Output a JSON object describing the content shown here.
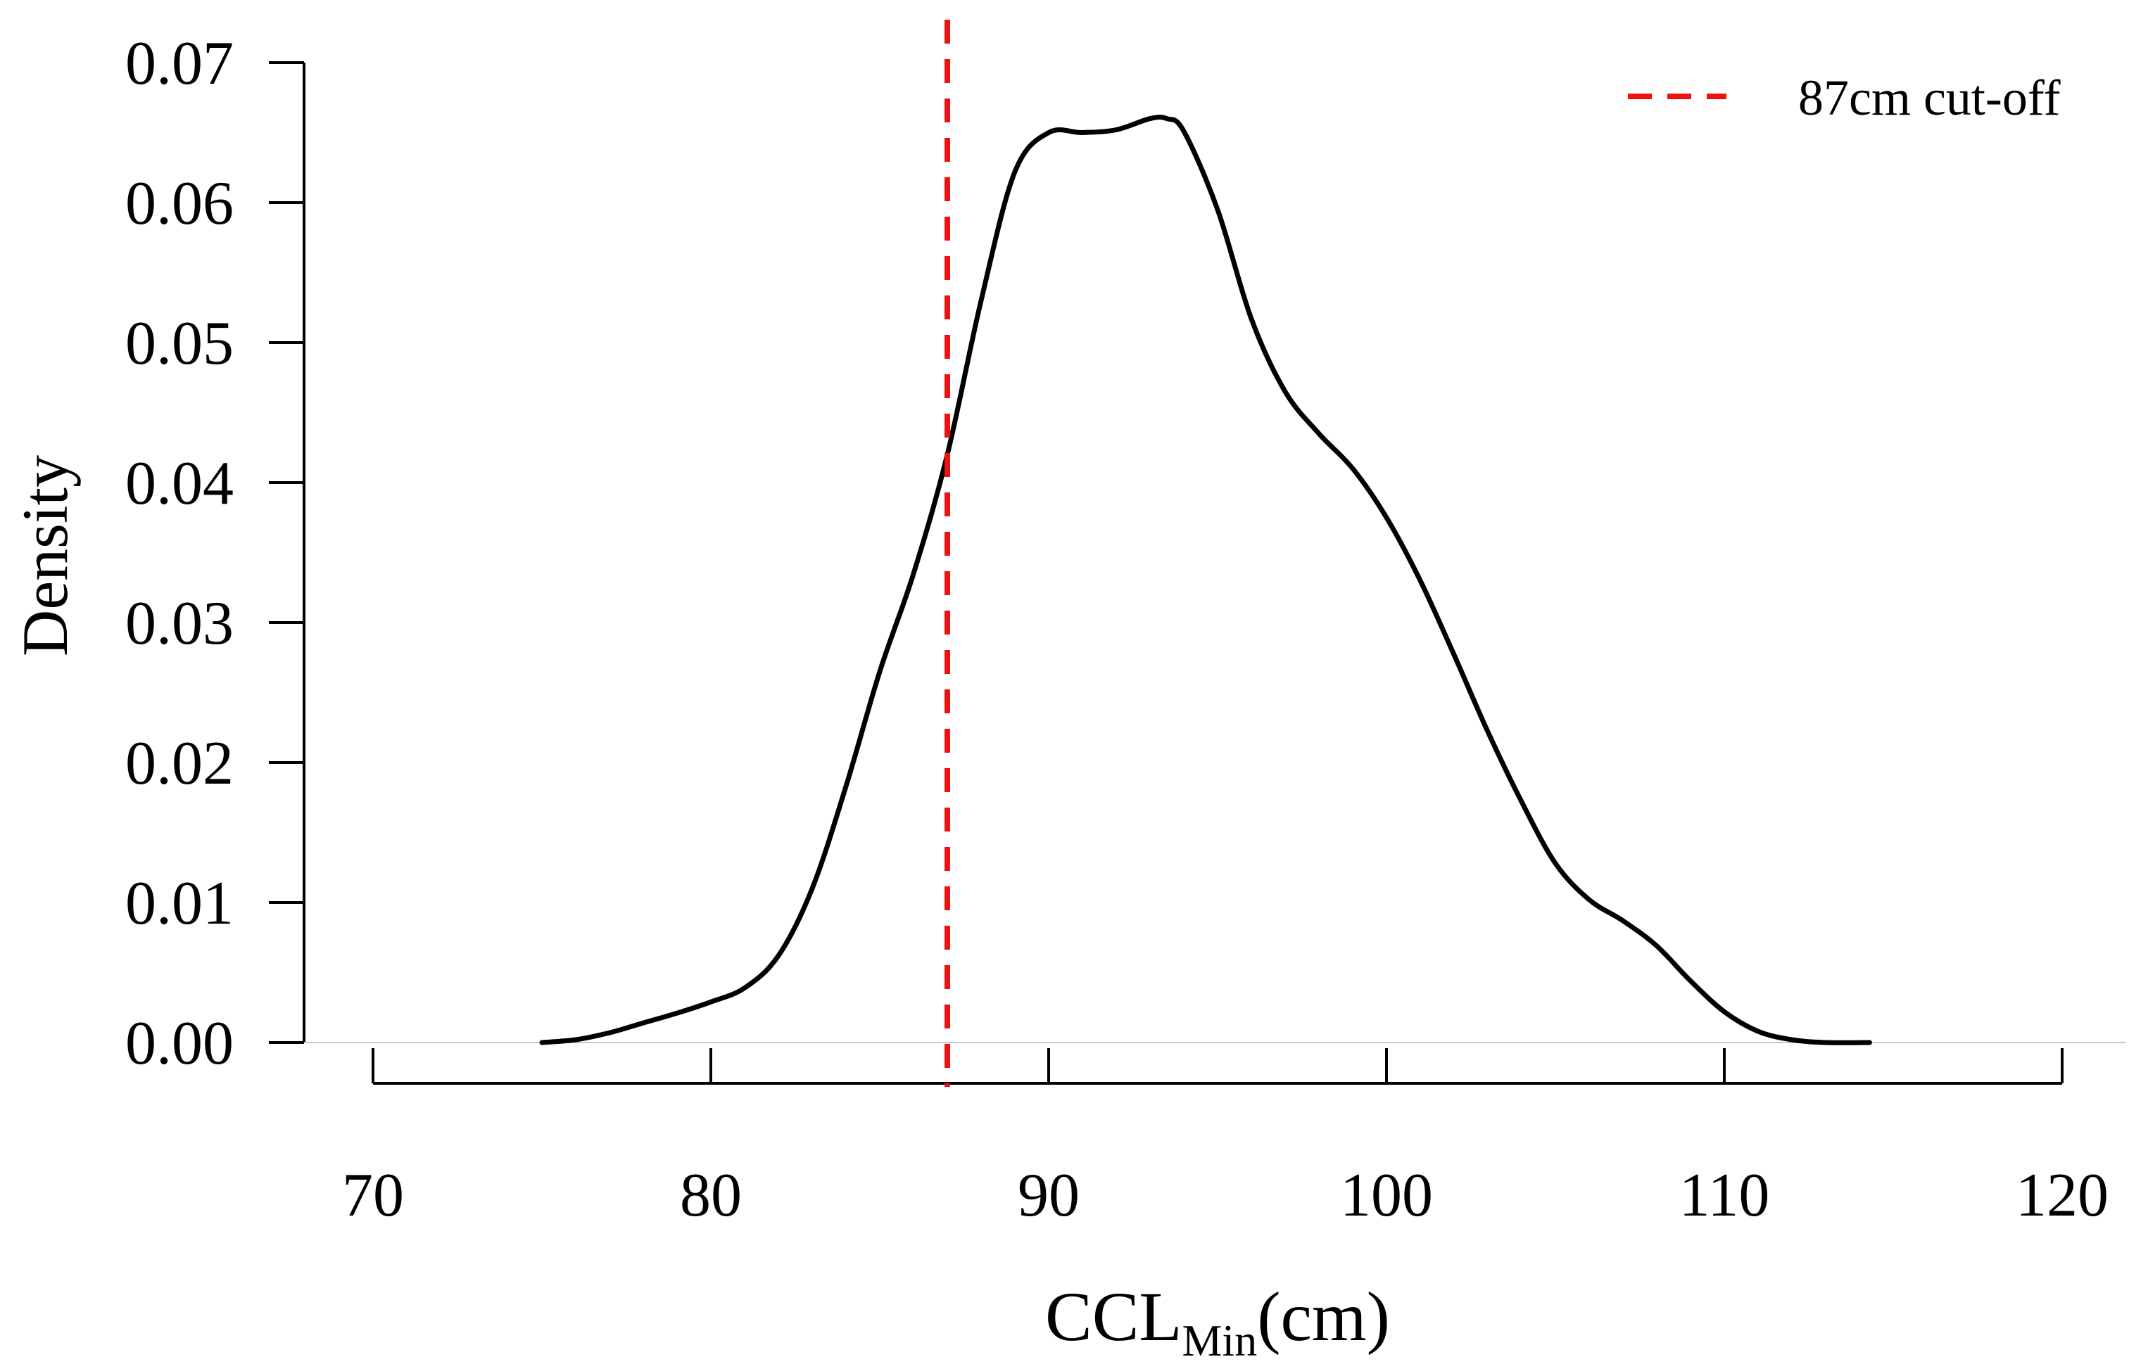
{
  "chart_data": {
    "type": "line",
    "title": "",
    "xlabel": {
      "main": "CCL",
      "sub": "Min",
      "suffix": "(cm)"
    },
    "ylabel": "Density",
    "xlim": [
      70,
      120
    ],
    "ylim": [
      0,
      0.07
    ],
    "x_ticks": [
      70,
      80,
      90,
      100,
      110,
      120
    ],
    "x_tick_labels": [
      "70",
      "80",
      "90",
      "100",
      "110",
      "120"
    ],
    "y_ticks": [
      0,
      0.01,
      0.02,
      0.03,
      0.04,
      0.05,
      0.06,
      0.07
    ],
    "y_tick_labels": [
      "0.00",
      "0.01",
      "0.02",
      "0.03",
      "0.04",
      "0.05",
      "0.06",
      "0.07"
    ],
    "grid": false,
    "series": [
      {
        "name": "density",
        "color": "#000000",
        "x": [
          75.0,
          76.0,
          77.0,
          78.0,
          79.0,
          80.0,
          81.0,
          82.0,
          83.0,
          84.0,
          85.0,
          86.0,
          87.0,
          88.0,
          89.0,
          90.0,
          91.0,
          92.0,
          93.0,
          93.5,
          94.0,
          95.0,
          96.0,
          97.0,
          98.0,
          99.0,
          100.0,
          101.0,
          102.0,
          103.0,
          104.0,
          105.0,
          106.0,
          107.0,
          108.0,
          109.0,
          110.0,
          111.0,
          112.0,
          113.0,
          114.3
        ],
        "y": [
          0.0,
          0.0002,
          0.0007,
          0.0014,
          0.0021,
          0.0029,
          0.0039,
          0.0062,
          0.011,
          0.0183,
          0.0265,
          0.0335,
          0.042,
          0.053,
          0.0622,
          0.065,
          0.065,
          0.0652,
          0.066,
          0.066,
          0.0651,
          0.0595,
          0.0517,
          0.0465,
          0.0435,
          0.041,
          0.0375,
          0.033,
          0.0277,
          0.0222,
          0.0172,
          0.0128,
          0.0102,
          0.0087,
          0.0069,
          0.0044,
          0.0022,
          0.0008,
          0.0002,
          0.0,
          0.0
        ]
      }
    ],
    "reference_lines": [
      {
        "name": "87cm cut-off",
        "x": 87,
        "color": "#ee1111",
        "style": "dashed"
      }
    ],
    "legend": {
      "position": "top-right",
      "entries": [
        "87cm cut-off"
      ]
    }
  }
}
